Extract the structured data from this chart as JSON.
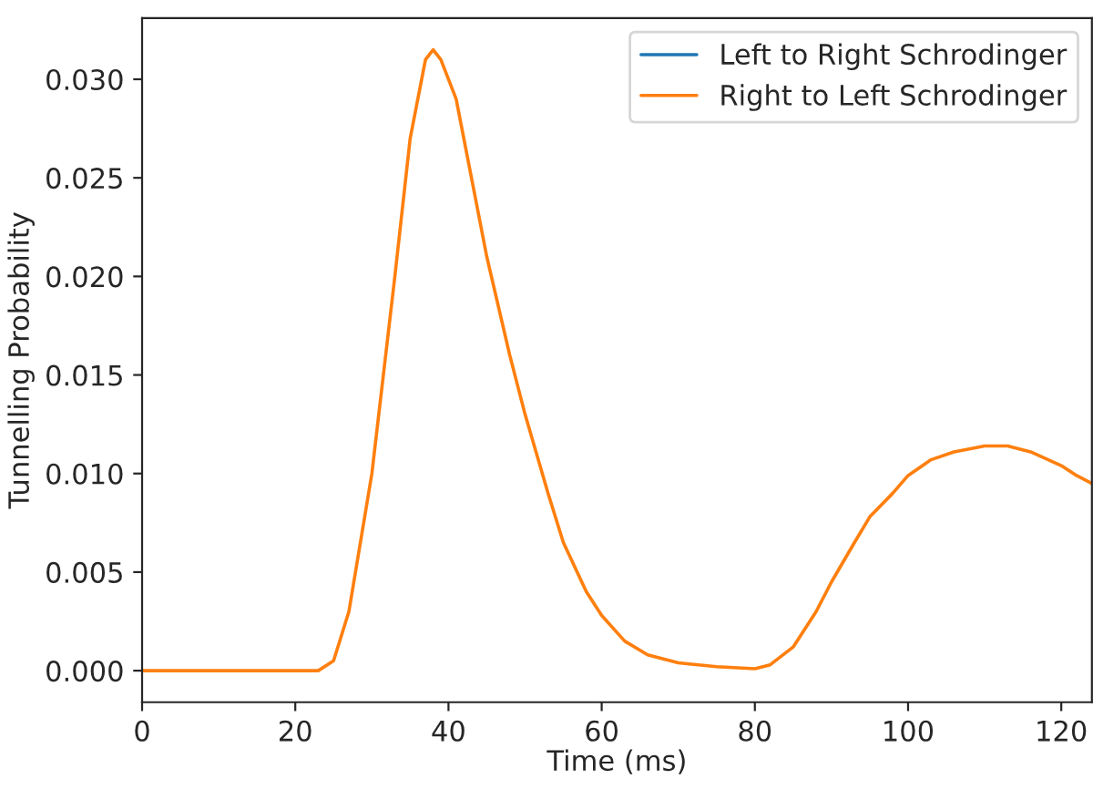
{
  "chart_data": {
    "type": "line",
    "xlabel": "Time (ms)",
    "ylabel": "Tunnelling Probability",
    "x": [
      0,
      10,
      20,
      23,
      25,
      27,
      30,
      33,
      35,
      37,
      38,
      39,
      41,
      43,
      45,
      48,
      50,
      53,
      55,
      58,
      60,
      63,
      66,
      70,
      75,
      80,
      82,
      85,
      88,
      90,
      93,
      95,
      98,
      100,
      103,
      106,
      110,
      113,
      116,
      120,
      122,
      124
    ],
    "series": [
      {
        "name": "Left to Right Schrodinger",
        "color": "#1f77b4",
        "values": [
          null,
          null,
          null,
          null,
          null,
          null,
          null,
          null,
          null,
          null,
          null,
          null,
          null,
          null,
          null,
          null,
          null,
          null,
          null,
          null,
          null,
          null,
          null,
          null,
          null,
          null,
          null,
          null,
          null,
          null,
          null,
          null,
          null,
          null,
          null,
          null,
          null,
          null,
          null,
          null,
          null,
          null
        ]
      },
      {
        "name": "Right to Left Schrodinger",
        "color": "#ff7f0e",
        "values": [
          0,
          0,
          0,
          0,
          0.0005,
          0.003,
          0.01,
          0.02,
          0.027,
          0.031,
          0.0315,
          0.031,
          0.029,
          0.025,
          0.021,
          0.016,
          0.013,
          0.009,
          0.0065,
          0.004,
          0.0028,
          0.0015,
          0.0008,
          0.0004,
          0.0002,
          0.0001,
          0.0003,
          0.0012,
          0.003,
          0.0045,
          0.0065,
          0.0078,
          0.009,
          0.0099,
          0.0107,
          0.0111,
          0.0114,
          0.0114,
          0.0111,
          0.0104,
          0.0099,
          0.0095
        ]
      }
    ],
    "xlim": [
      0,
      124
    ],
    "xticks": [
      0,
      20,
      40,
      60,
      80,
      100,
      120
    ],
    "ylim": [
      -0.0016,
      0.0331
    ],
    "yticks": [
      {
        "value": 0,
        "label": "0.000"
      },
      {
        "value": 0.005,
        "label": "0.005"
      },
      {
        "value": 0.01,
        "label": "0.010"
      },
      {
        "value": 0.015,
        "label": "0.015"
      },
      {
        "value": 0.02,
        "label": "0.020"
      },
      {
        "value": 0.025,
        "label": "0.025"
      },
      {
        "value": 0.03,
        "label": "0.030"
      }
    ],
    "legend": "top right"
  }
}
